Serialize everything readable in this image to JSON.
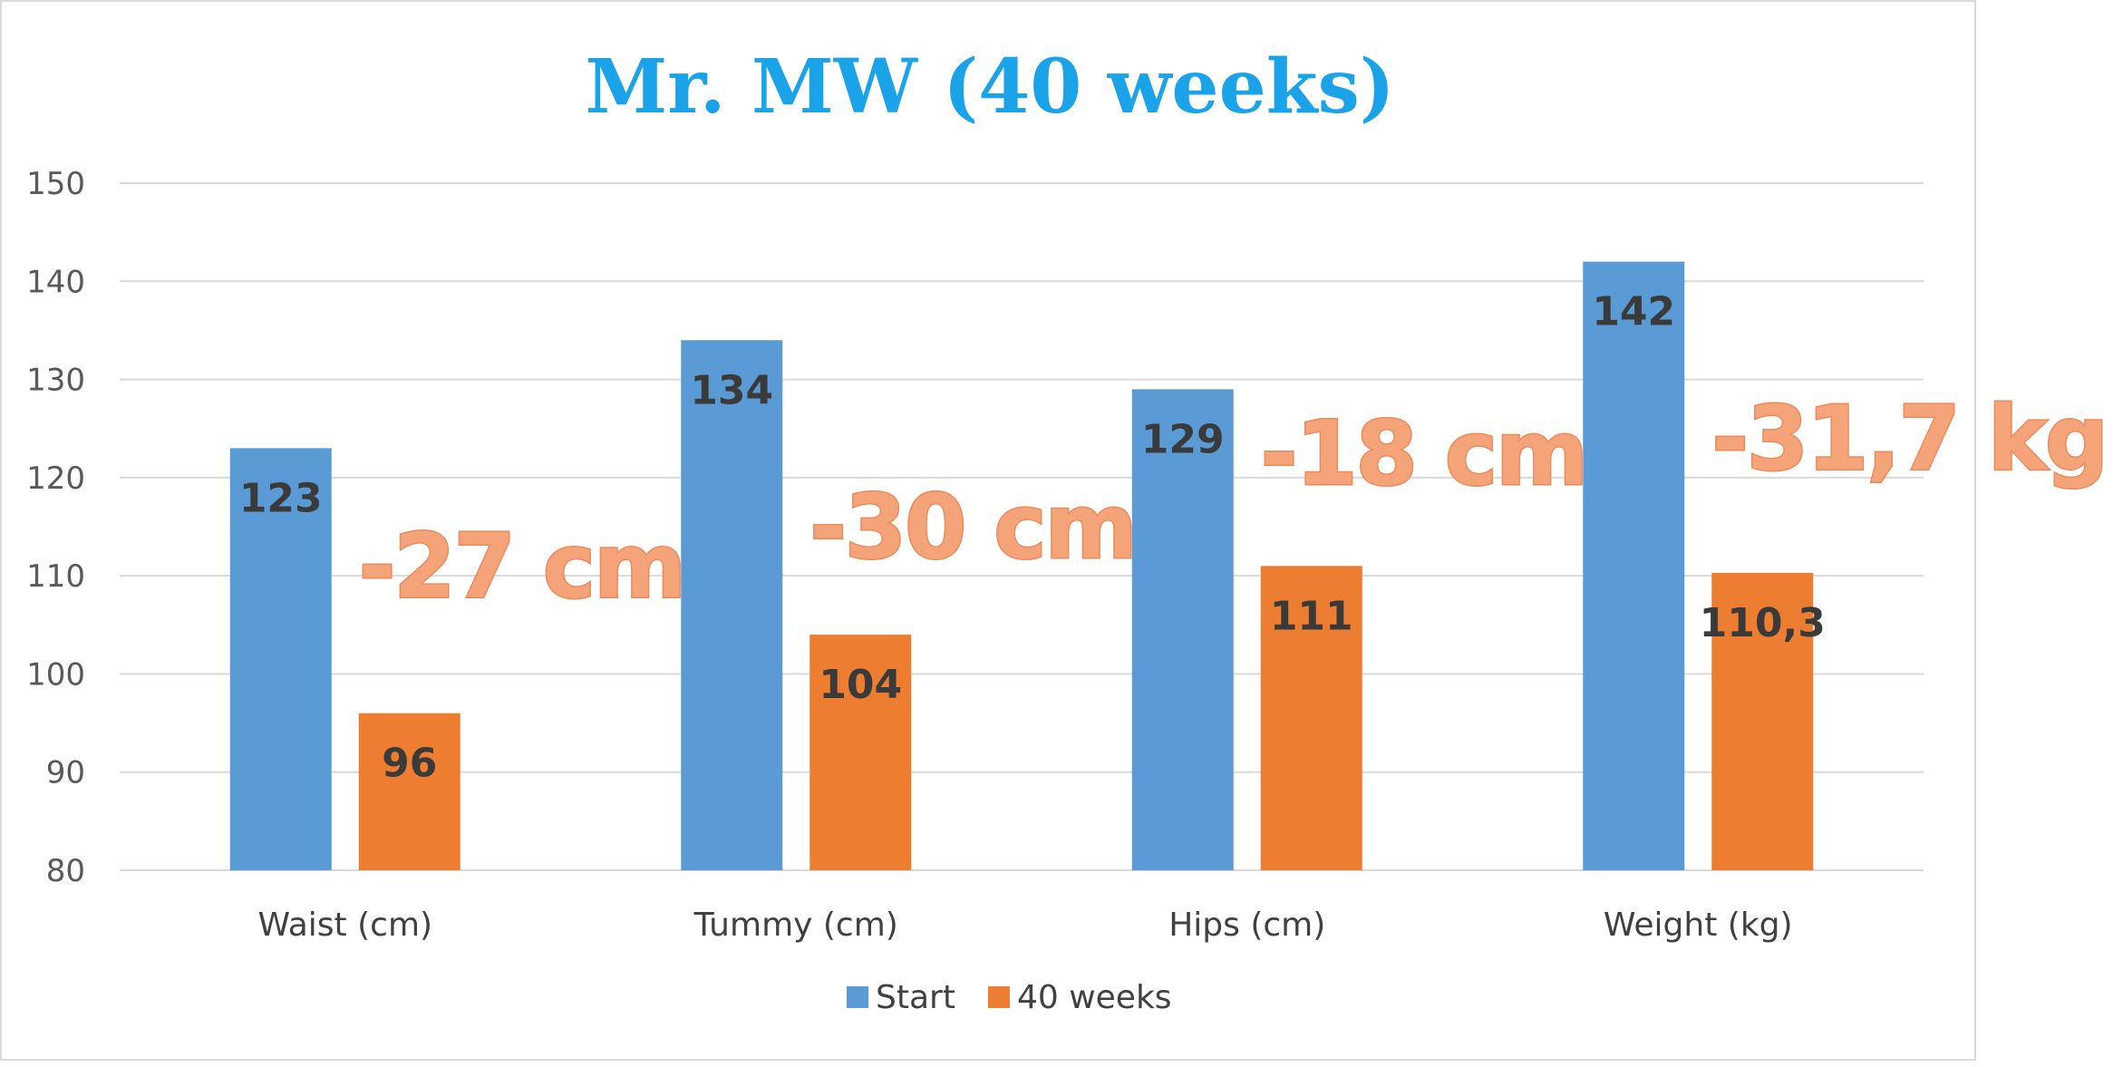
{
  "chart_data": {
    "type": "bar",
    "title": "Mr. MW (40 weeks)",
    "categories": [
      "Waist (cm)",
      "Tummy (cm)",
      "Hips (cm)",
      "Weight (kg)"
    ],
    "series": [
      {
        "name": "Start",
        "values": [
          123,
          134,
          129,
          142
        ],
        "labels": [
          "123",
          "134",
          "129",
          "142"
        ],
        "color": "#5b9bd5"
      },
      {
        "name": "40 weeks",
        "values": [
          96,
          104,
          111,
          110.3
        ],
        "labels": [
          "96",
          "104",
          "111",
          "110,3"
        ],
        "color": "#ed7d31"
      }
    ],
    "ylim": [
      80,
      150
    ],
    "yticks": [
      80,
      90,
      100,
      110,
      120,
      130,
      140,
      150
    ],
    "grid": true,
    "legend": "bottom",
    "annotations": [
      {
        "text": "-27 cm",
        "category": "Waist (cm)",
        "value": 111
      },
      {
        "text": "-30 cm",
        "category": "Tummy (cm)",
        "value": 115
      },
      {
        "text": "-18 cm",
        "category": "Hips (cm)",
        "value": 122.5
      },
      {
        "text": "-31,7 kg",
        "category": "Weight (kg)",
        "value": 124
      }
    ]
  }
}
